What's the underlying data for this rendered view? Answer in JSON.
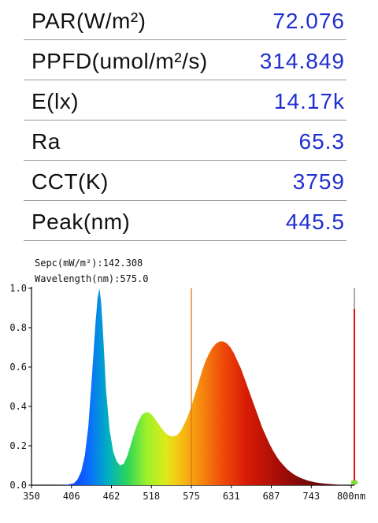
{
  "metrics": [
    {
      "label": "PAR(W/m²)",
      "value": "72.076"
    },
    {
      "label": "PPFD(umol/m²/s)",
      "value": "314.849"
    },
    {
      "label": "E(lx)",
      "value": "14.17k"
    },
    {
      "label": "Ra",
      "value": "65.3"
    },
    {
      "label": "CCT(K)",
      "value": "3759"
    },
    {
      "label": "Peak(nm)",
      "value": "445.5"
    }
  ],
  "readout": {
    "spec": "Sepc(mW/m²):142.308",
    "wavelength": "Wavelength(nm):575.0"
  },
  "chart_data": {
    "type": "area",
    "title": "",
    "xlabel": "",
    "ylabel": "",
    "x_unit": "nm",
    "xlim": [
      350,
      800
    ],
    "ylim": [
      0,
      1.0
    ],
    "x_ticks": [
      "350",
      "406",
      "462",
      "518",
      "575",
      "631",
      "687",
      "743",
      "800nm"
    ],
    "y_ticks": [
      "0.0",
      "0.2",
      "0.4",
      "0.6",
      "0.8",
      "1.0"
    ],
    "cursor_wavelength": 575.0,
    "series": [
      {
        "x": [
          380,
          390,
          400,
          410,
          415,
          420,
          425,
          430,
          435,
          440,
          443,
          445.5,
          448,
          450,
          453,
          455,
          460,
          465,
          470,
          475,
          480,
          485,
          490,
          495,
          500,
          505,
          510,
          515,
          520,
          525,
          530,
          535,
          540,
          545,
          550,
          555,
          560,
          565,
          570,
          575,
          580,
          585,
          590,
          595,
          600,
          605,
          610,
          615,
          620,
          625,
          630,
          635,
          640,
          645,
          650,
          655,
          660,
          665,
          670,
          675,
          680,
          685,
          690,
          695,
          700,
          710,
          720,
          730,
          740,
          750,
          760,
          770,
          780,
          790,
          800
        ],
        "y": [
          0.0,
          0.0,
          0.002,
          0.01,
          0.03,
          0.07,
          0.15,
          0.3,
          0.55,
          0.82,
          0.95,
          1.0,
          0.93,
          0.82,
          0.62,
          0.48,
          0.28,
          0.17,
          0.12,
          0.1,
          0.11,
          0.15,
          0.21,
          0.27,
          0.32,
          0.355,
          0.37,
          0.37,
          0.355,
          0.33,
          0.305,
          0.28,
          0.26,
          0.25,
          0.248,
          0.255,
          0.275,
          0.31,
          0.35,
          0.4,
          0.46,
          0.52,
          0.58,
          0.63,
          0.67,
          0.7,
          0.72,
          0.73,
          0.73,
          0.72,
          0.7,
          0.67,
          0.63,
          0.59,
          0.54,
          0.49,
          0.44,
          0.39,
          0.34,
          0.29,
          0.25,
          0.21,
          0.175,
          0.145,
          0.12,
          0.08,
          0.053,
          0.035,
          0.022,
          0.014,
          0.009,
          0.006,
          0.003,
          0.001,
          0.0
        ]
      }
    ]
  },
  "colors": {
    "value_text": "#1f2fd0",
    "cursor_line": "#e07020",
    "end_bar_gray": "#aaaaaa",
    "end_bar_red": "#dd1111",
    "end_marker_green": "#7ddc3a"
  }
}
